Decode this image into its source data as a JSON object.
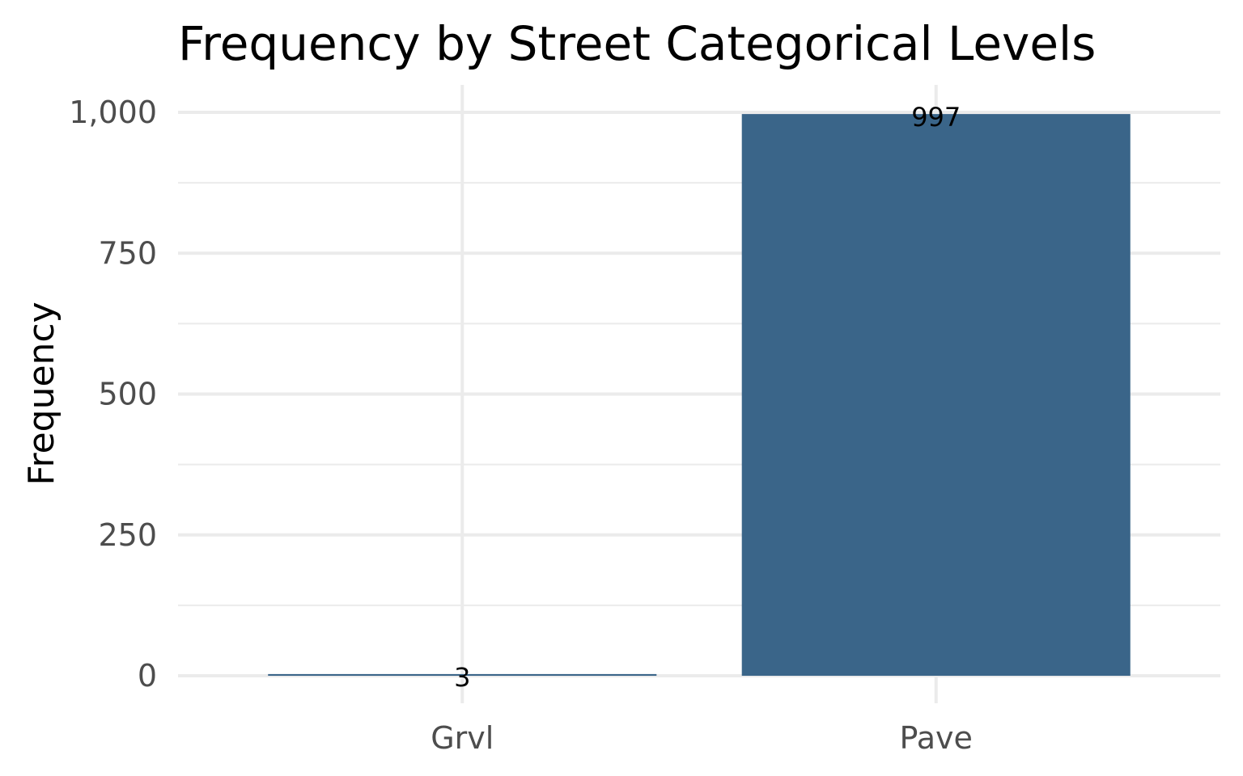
{
  "chart_data": {
    "type": "bar",
    "title": "Frequency by Street Categorical Levels",
    "xlabel": "",
    "ylabel": "Frequency",
    "categories": [
      "Grvl",
      "Pave"
    ],
    "values": [
      3,
      997
    ],
    "data_labels": [
      "3",
      "997"
    ],
    "ylim": [
      0,
      1000
    ],
    "yticks": [
      0,
      250,
      500,
      750,
      1000
    ],
    "ytick_labels": [
      "0",
      "250",
      "500",
      "750",
      "1,000"
    ],
    "grid": true,
    "legend": "none",
    "colors": {
      "bar": "#3a6589",
      "grid": "#ebebeb",
      "tick_text": "#4d4d4d"
    }
  }
}
